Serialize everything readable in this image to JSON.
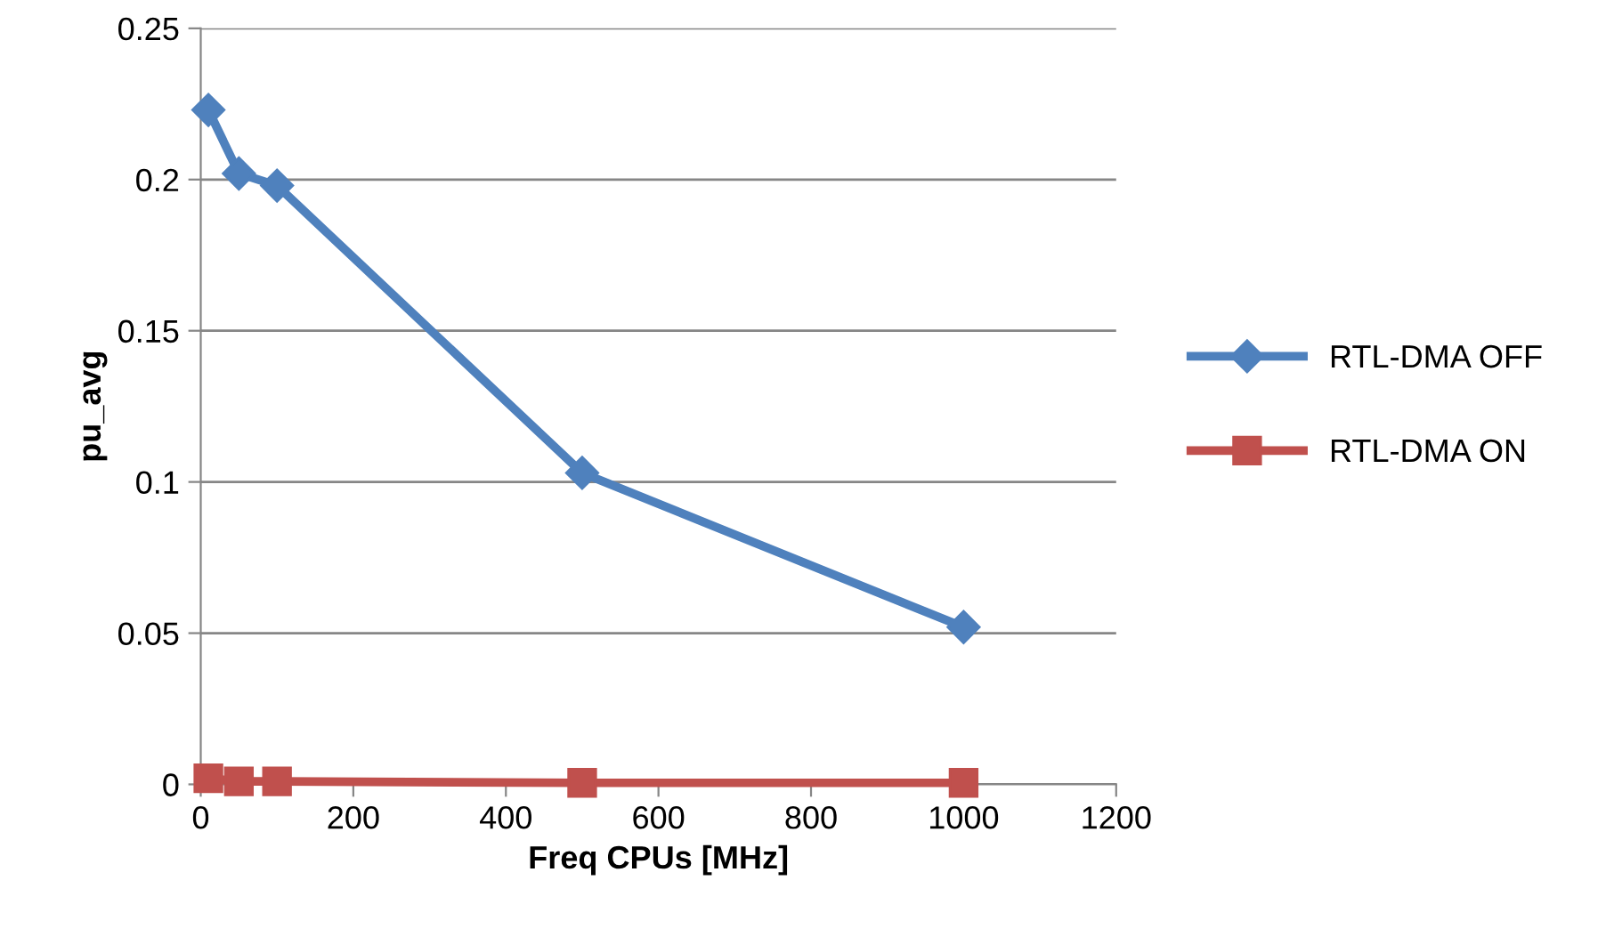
{
  "chart_data": {
    "type": "line",
    "xlabel": "Freq CPUs [MHz]",
    "ylabel": "pu_avg",
    "xlim": [
      0,
      1200
    ],
    "xticks": [
      0,
      200,
      400,
      600,
      800,
      1000,
      1200
    ],
    "ylim": [
      0,
      0.25
    ],
    "yticks": [
      0,
      0.05,
      0.1,
      0.15,
      0.2,
      0.25
    ],
    "grid": "y",
    "legend": "right",
    "series": [
      {
        "name": "RTL-DMA OFF",
        "color": "#4f81bd",
        "marker": "diamond",
        "x": [
          10,
          50,
          100,
          500,
          1000
        ],
        "values": [
          0.223,
          0.202,
          0.198,
          0.103,
          0.052
        ]
      },
      {
        "name": "RTL-DMA ON",
        "color": "#c0504d",
        "marker": "square",
        "x": [
          10,
          50,
          100,
          500,
          1000
        ],
        "values": [
          0.002,
          0.001,
          0.001,
          0.0005,
          0.0005
        ]
      }
    ]
  }
}
